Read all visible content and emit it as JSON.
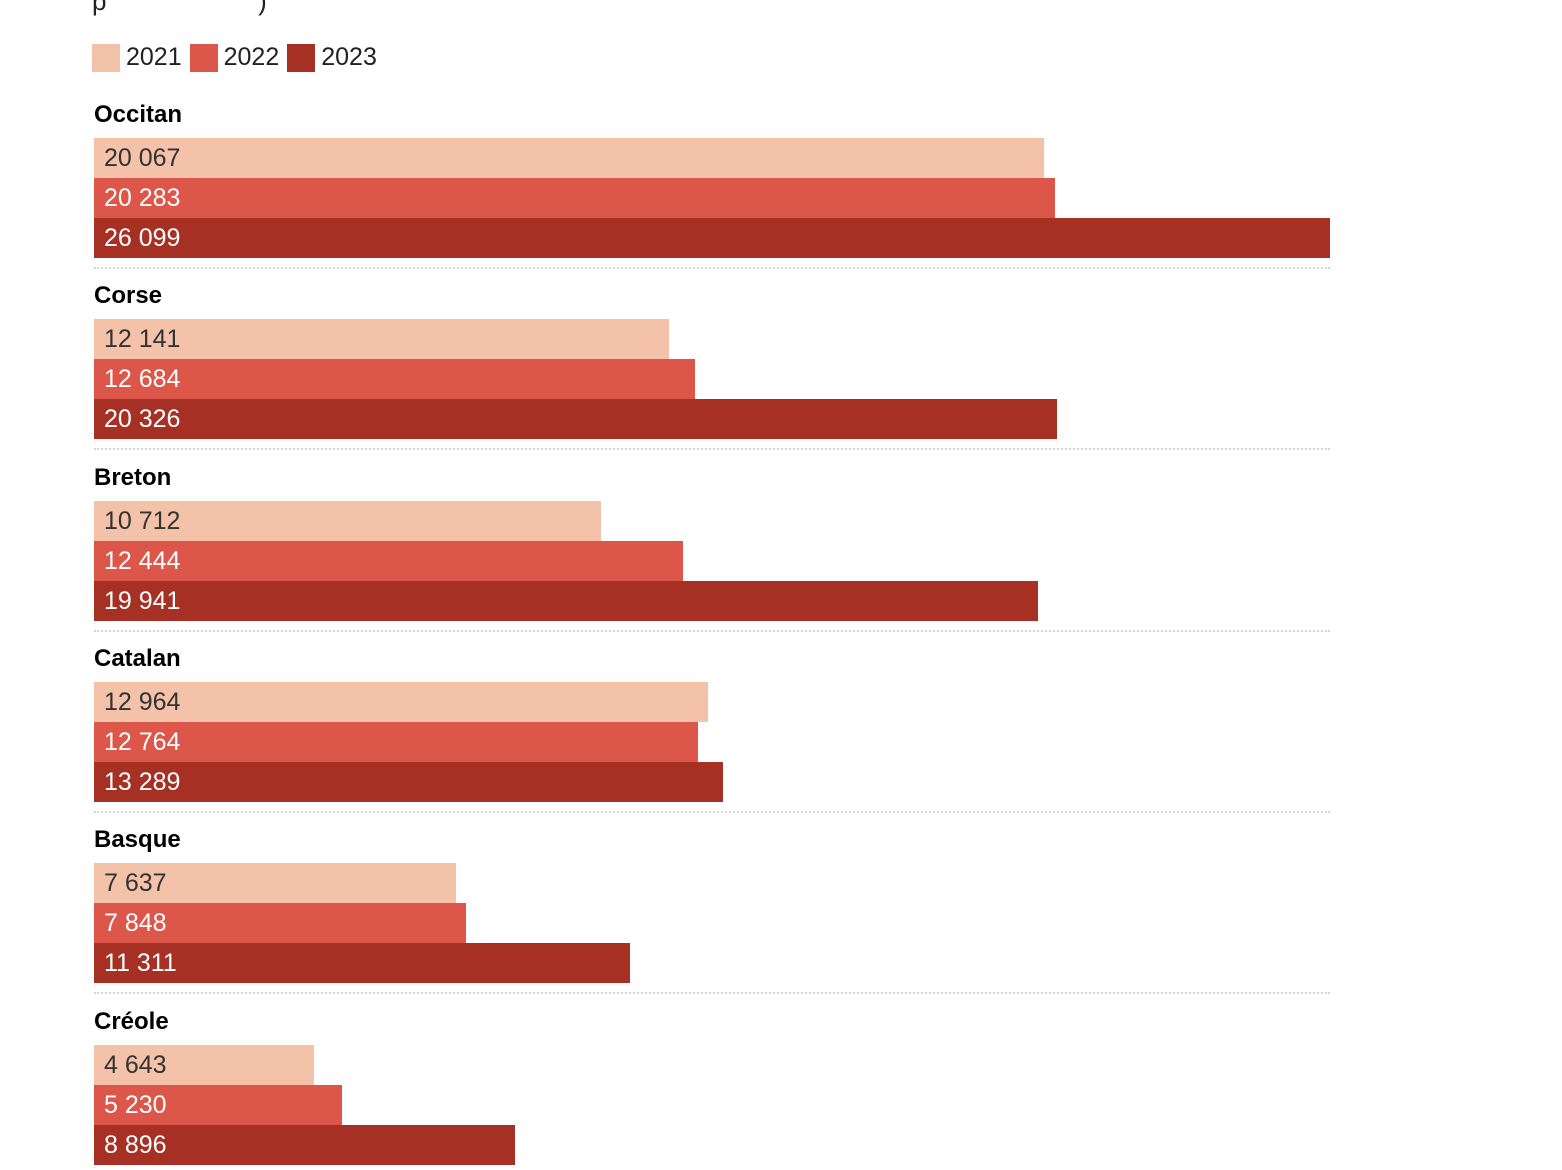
{
  "chart_data": {
    "type": "bar",
    "orientation": "horizontal",
    "title": "",
    "xlabel": "",
    "ylabel": "",
    "grid": false,
    "legend_placement": "top-left",
    "xlim": [
      0,
      26099
    ],
    "categories": [
      "Occitan",
      "Corse",
      "Breton",
      "Catalan",
      "Basque",
      "Créole"
    ],
    "series": [
      {
        "name": "2021",
        "color": "#f4c1a9",
        "label_color": "#333333",
        "values": [
          20067,
          12141,
          10712,
          12964,
          7637,
          4643
        ],
        "labels": [
          "20 067",
          "12 141",
          "10 712",
          "12 964",
          "7 637",
          "4 643"
        ]
      },
      {
        "name": "2022",
        "color": "#dc5749",
        "label_color": "#ffffff",
        "values": [
          20283,
          12684,
          12444,
          12764,
          7848,
          5230
        ],
        "labels": [
          "20 283",
          "12 684",
          "12 444",
          "12 764",
          "7 848",
          "5 230"
        ]
      },
      {
        "name": "2023",
        "color": "#a63023",
        "label_color": "#ffffff",
        "values": [
          26099,
          20326,
          19941,
          13289,
          11311,
          8896
        ],
        "labels": [
          "26 099",
          "20 326",
          "19 941",
          "13 289",
          "11 311",
          "8 896"
        ]
      }
    ]
  }
}
